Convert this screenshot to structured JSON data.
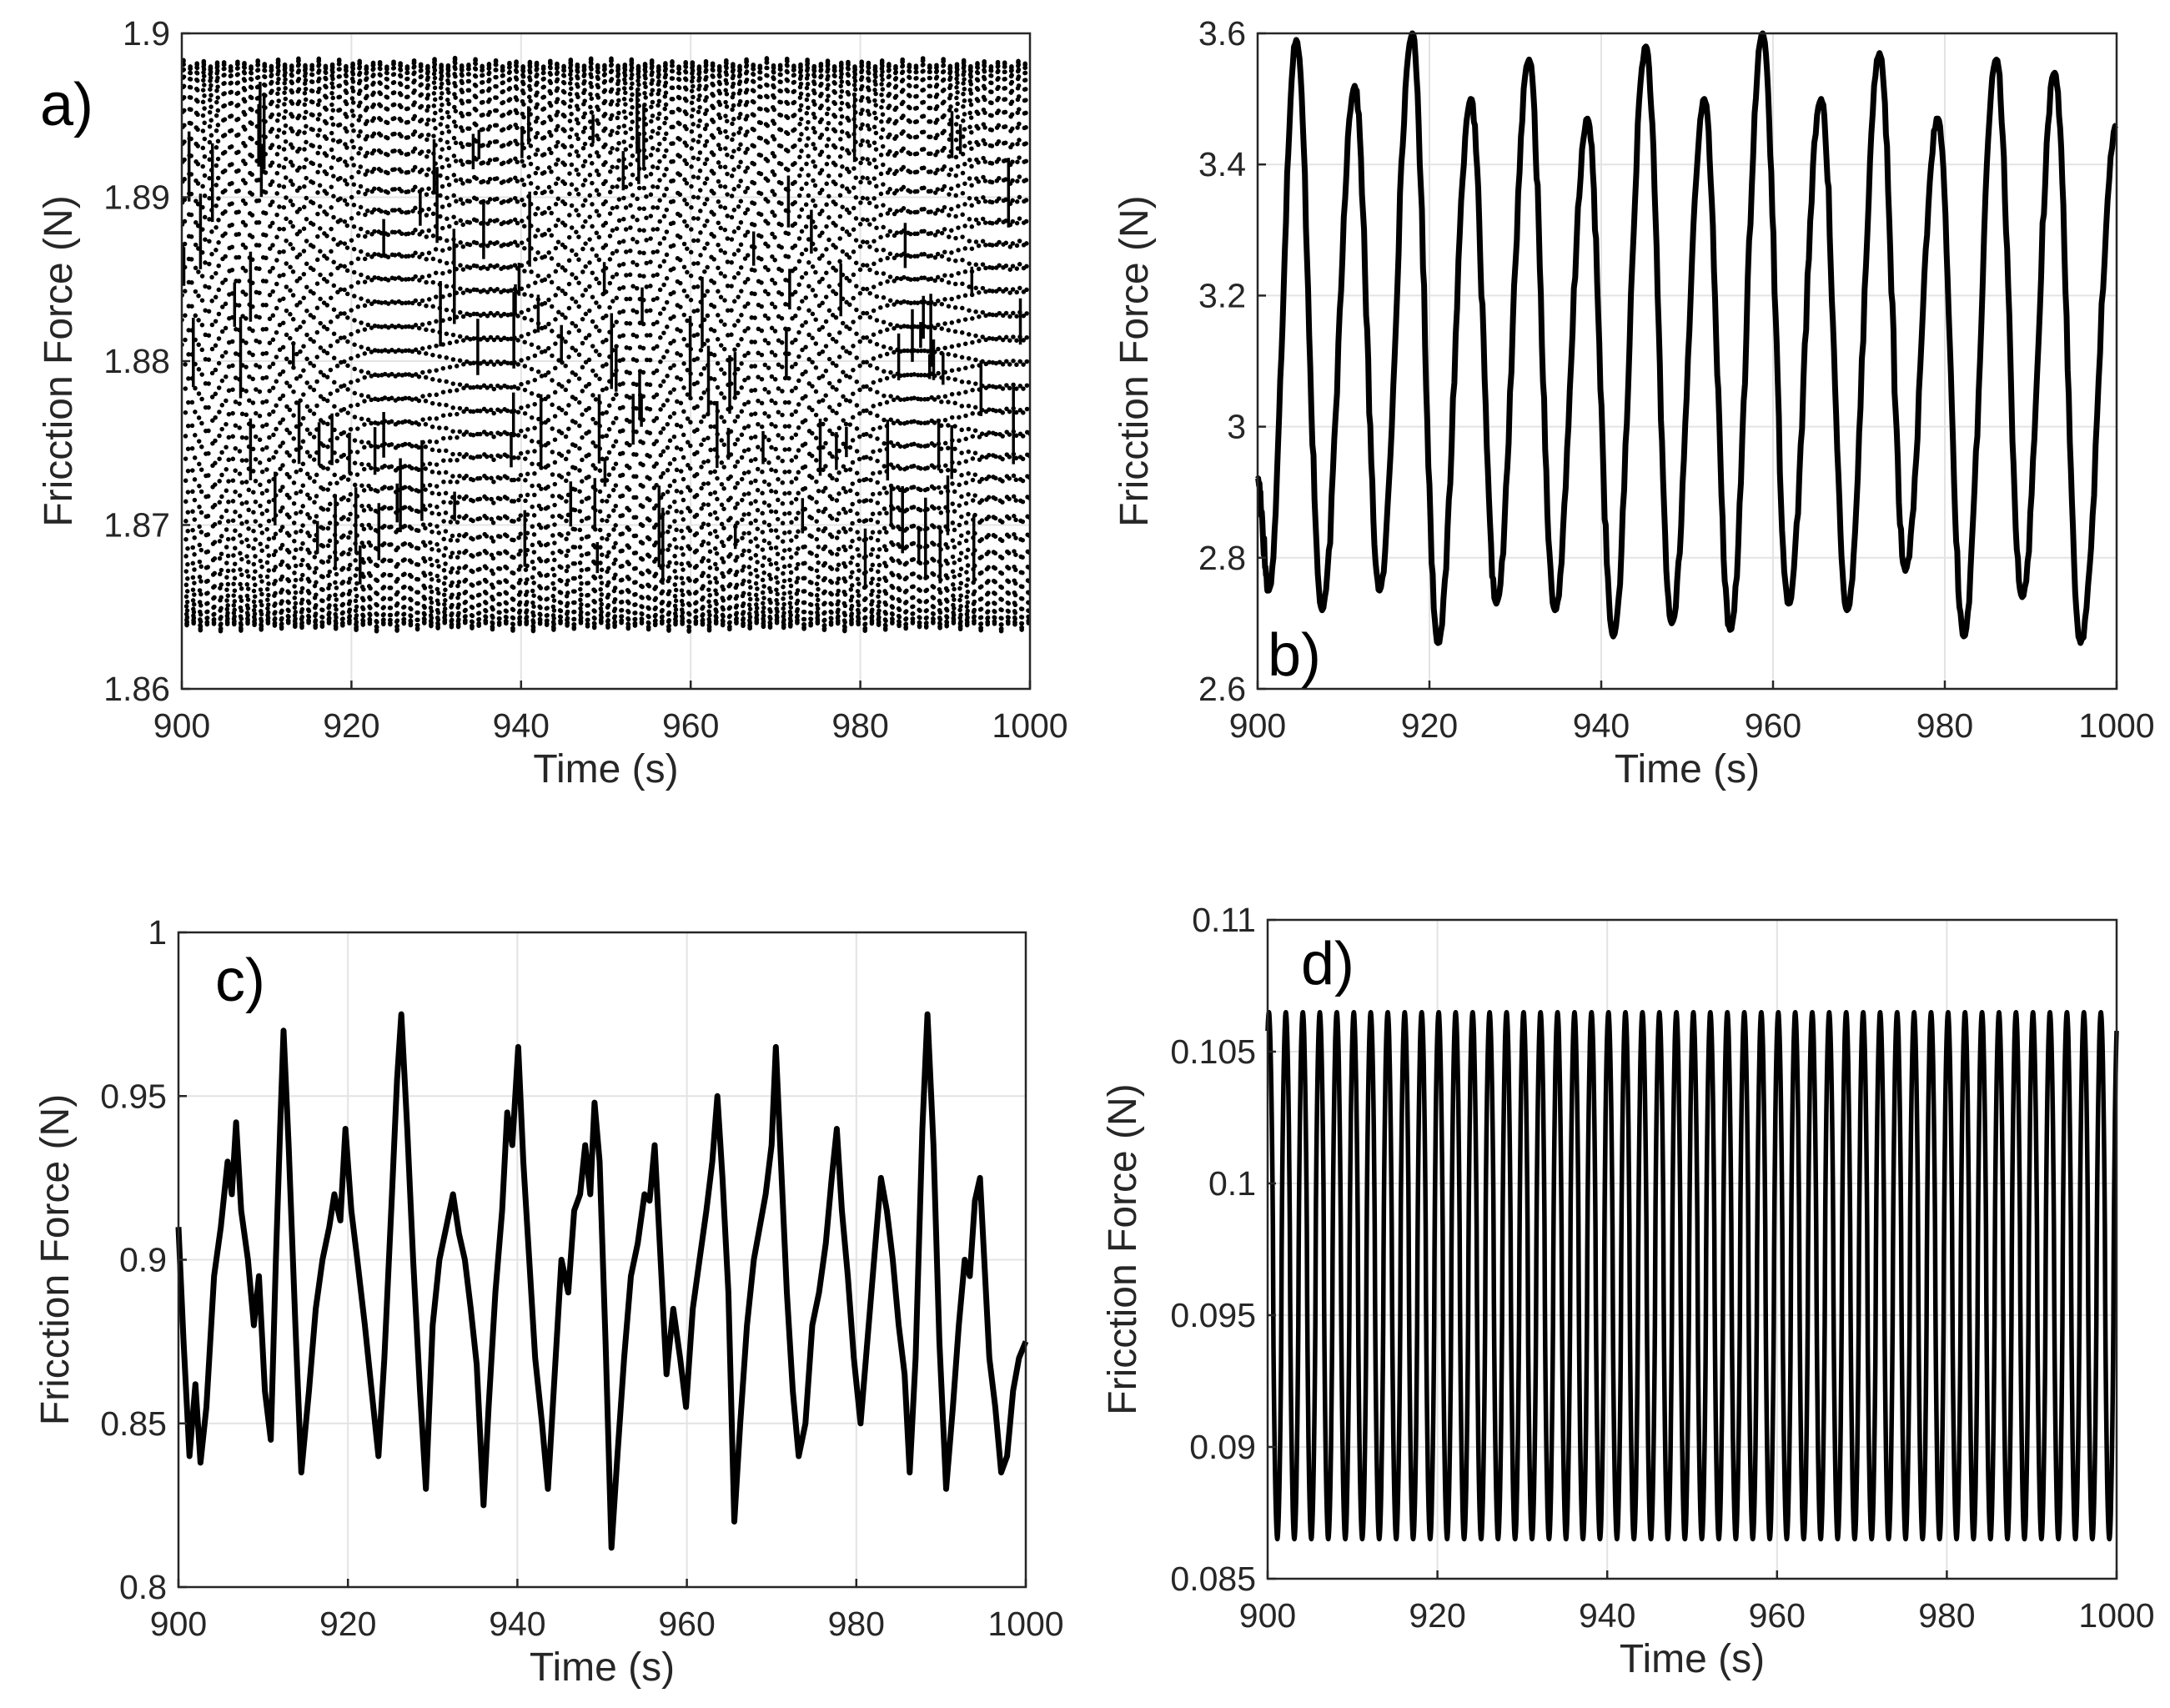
{
  "chart_data": [
    {
      "type": "line",
      "panel_label": "a)",
      "panel_label_position": "top-left",
      "title": "",
      "xlabel": "Time (s)",
      "ylabel": "Fricction Force (N)",
      "xlim": [
        900,
        1000
      ],
      "ylim": [
        1.86,
        1.9
      ],
      "xticks": [
        900,
        920,
        940,
        960,
        980,
        1000
      ],
      "xtick_labels": [
        "900",
        "920",
        "940",
        "960",
        "980",
        "1000"
      ],
      "yticks": [
        1.86,
        1.87,
        1.88,
        1.89,
        1.9
      ],
      "ytick_labels": [
        "1.86",
        "1.87",
        "1.88",
        "1.89",
        "1.9"
      ],
      "grid": true,
      "marker_style": "dots",
      "series": [
        {
          "name": "a",
          "description": "dense dotted oscillation filling the band between ~1.8635 and ~1.8985",
          "x_start": 900,
          "x_end": 1000,
          "period": 0.8,
          "min": 1.8635,
          "max": 1.8985
        }
      ]
    },
    {
      "type": "line",
      "panel_label": "b)",
      "panel_label_position": "bottom-left",
      "title": "",
      "xlabel": "Time (s)",
      "ylabel": "Fricction Force (N)",
      "xlim": [
        900,
        1000
      ],
      "ylim": [
        2.6,
        3.6
      ],
      "xticks": [
        900,
        920,
        940,
        960,
        980,
        1000
      ],
      "xtick_labels": [
        "900",
        "920",
        "940",
        "960",
        "980",
        "1000"
      ],
      "yticks": [
        2.6,
        2.8,
        3.0,
        3.2,
        3.4,
        3.6
      ],
      "ytick_labels": [
        "2.6",
        "2.8",
        "3",
        "3.2",
        "3.4",
        "3.6"
      ],
      "grid": true,
      "series": [
        {
          "name": "b",
          "start_value": 2.92,
          "end_value": 3.46,
          "peaks": [
            {
              "x": 904.5,
              "y": 3.59
            },
            {
              "x": 911.3,
              "y": 3.52
            },
            {
              "x": 918.0,
              "y": 3.6
            },
            {
              "x": 924.8,
              "y": 3.5
            },
            {
              "x": 931.6,
              "y": 3.56
            },
            {
              "x": 938.4,
              "y": 3.47
            },
            {
              "x": 945.2,
              "y": 3.58
            },
            {
              "x": 952.0,
              "y": 3.5
            },
            {
              "x": 958.8,
              "y": 3.6
            },
            {
              "x": 965.6,
              "y": 3.5
            },
            {
              "x": 972.4,
              "y": 3.57
            },
            {
              "x": 979.2,
              "y": 3.47
            },
            {
              "x": 986.0,
              "y": 3.56
            },
            {
              "x": 992.8,
              "y": 3.54
            }
          ],
          "troughs": [
            {
              "x": 901.3,
              "y": 2.75
            },
            {
              "x": 907.5,
              "y": 2.72
            },
            {
              "x": 914.2,
              "y": 2.75
            },
            {
              "x": 921.0,
              "y": 2.67
            },
            {
              "x": 927.8,
              "y": 2.73
            },
            {
              "x": 934.6,
              "y": 2.72
            },
            {
              "x": 941.4,
              "y": 2.68
            },
            {
              "x": 948.2,
              "y": 2.7
            },
            {
              "x": 955.0,
              "y": 2.69
            },
            {
              "x": 961.8,
              "y": 2.73
            },
            {
              "x": 968.6,
              "y": 2.72
            },
            {
              "x": 975.4,
              "y": 2.78
            },
            {
              "x": 982.2,
              "y": 2.68
            },
            {
              "x": 989.0,
              "y": 2.74
            },
            {
              "x": 995.8,
              "y": 2.67
            }
          ]
        }
      ]
    },
    {
      "type": "line",
      "panel_label": "c)",
      "panel_label_position": "top-left",
      "title": "",
      "xlabel": "Time (s)",
      "ylabel": "Fricction Force (N)",
      "xlim": [
        900,
        1000
      ],
      "ylim": [
        0.8,
        1.0
      ],
      "xticks": [
        900,
        920,
        940,
        960,
        980,
        1000
      ],
      "xtick_labels": [
        "900",
        "920",
        "940",
        "960",
        "980",
        "1000"
      ],
      "yticks": [
        0.8,
        0.85,
        0.9,
        0.95,
        1.0
      ],
      "ytick_labels": [
        "0.8",
        "0.85",
        "0.9",
        "0.95",
        "1"
      ],
      "grid": true,
      "series": [
        {
          "name": "c",
          "points": [
            [
              900.0,
              0.91
            ],
            [
              900.6,
              0.875
            ],
            [
              901.3,
              0.84
            ],
            [
              902.0,
              0.862
            ],
            [
              902.6,
              0.838
            ],
            [
              903.3,
              0.855
            ],
            [
              904.2,
              0.895
            ],
            [
              905.0,
              0.91
            ],
            [
              905.8,
              0.93
            ],
            [
              906.3,
              0.92
            ],
            [
              906.8,
              0.942
            ],
            [
              907.4,
              0.915
            ],
            [
              908.2,
              0.9
            ],
            [
              908.9,
              0.88
            ],
            [
              909.5,
              0.895
            ],
            [
              910.2,
              0.86
            ],
            [
              910.9,
              0.845
            ],
            [
              911.5,
              0.9
            ],
            [
              912.0,
              0.94
            ],
            [
              912.4,
              0.97
            ],
            [
              913.0,
              0.935
            ],
            [
              913.8,
              0.88
            ],
            [
              914.5,
              0.835
            ],
            [
              915.4,
              0.86
            ],
            [
              916.2,
              0.885
            ],
            [
              917.0,
              0.9
            ],
            [
              917.8,
              0.91
            ],
            [
              918.4,
              0.92
            ],
            [
              919.1,
              0.912
            ],
            [
              919.7,
              0.94
            ],
            [
              920.4,
              0.915
            ],
            [
              921.1,
              0.9
            ],
            [
              922.0,
              0.88
            ],
            [
              922.8,
              0.86
            ],
            [
              923.6,
              0.84
            ],
            [
              924.3,
              0.87
            ],
            [
              925.2,
              0.92
            ],
            [
              925.8,
              0.955
            ],
            [
              926.3,
              0.975
            ],
            [
              927.0,
              0.94
            ],
            [
              927.7,
              0.9
            ],
            [
              928.5,
              0.86
            ],
            [
              929.2,
              0.83
            ],
            [
              930.0,
              0.88
            ],
            [
              930.8,
              0.9
            ],
            [
              931.6,
              0.91
            ],
            [
              932.4,
              0.92
            ],
            [
              933.1,
              0.908
            ],
            [
              933.8,
              0.9
            ],
            [
              934.5,
              0.885
            ],
            [
              935.2,
              0.868
            ],
            [
              936.0,
              0.825
            ],
            [
              936.6,
              0.855
            ],
            [
              937.4,
              0.89
            ],
            [
              938.2,
              0.915
            ],
            [
              938.8,
              0.945
            ],
            [
              939.4,
              0.935
            ],
            [
              940.1,
              0.965
            ],
            [
              940.7,
              0.93
            ],
            [
              941.4,
              0.9
            ],
            [
              942.1,
              0.87
            ],
            [
              942.9,
              0.85
            ],
            [
              943.6,
              0.83
            ],
            [
              944.4,
              0.865
            ],
            [
              945.2,
              0.9
            ],
            [
              946.0,
              0.89
            ],
            [
              946.7,
              0.915
            ],
            [
              947.4,
              0.92
            ],
            [
              948.0,
              0.935
            ],
            [
              948.6,
              0.92
            ],
            [
              949.1,
              0.948
            ],
            [
              949.7,
              0.93
            ],
            [
              950.4,
              0.875
            ],
            [
              951.1,
              0.812
            ],
            [
              951.8,
              0.84
            ],
            [
              952.6,
              0.87
            ],
            [
              953.4,
              0.895
            ],
            [
              954.2,
              0.905
            ],
            [
              955.0,
              0.92
            ],
            [
              955.6,
              0.918
            ],
            [
              956.2,
              0.935
            ],
            [
              956.8,
              0.905
            ],
            [
              957.6,
              0.865
            ],
            [
              958.4,
              0.885
            ],
            [
              959.2,
              0.87
            ],
            [
              959.9,
              0.855
            ],
            [
              960.7,
              0.885
            ],
            [
              961.5,
              0.9
            ],
            [
              962.3,
              0.915
            ],
            [
              963.0,
              0.93
            ],
            [
              963.6,
              0.95
            ],
            [
              964.2,
              0.925
            ],
            [
              964.9,
              0.89
            ],
            [
              965.6,
              0.82
            ],
            [
              966.3,
              0.85
            ],
            [
              967.1,
              0.88
            ],
            [
              967.9,
              0.9
            ],
            [
              968.6,
              0.91
            ],
            [
              969.3,
              0.92
            ],
            [
              970.0,
              0.935
            ],
            [
              970.5,
              0.965
            ],
            [
              971.1,
              0.93
            ],
            [
              971.8,
              0.89
            ],
            [
              972.5,
              0.86
            ],
            [
              973.2,
              0.84
            ],
            [
              974.0,
              0.85
            ],
            [
              974.8,
              0.88
            ],
            [
              975.6,
              0.89
            ],
            [
              976.4,
              0.905
            ],
            [
              977.1,
              0.925
            ],
            [
              977.7,
              0.94
            ],
            [
              978.3,
              0.915
            ],
            [
              979.0,
              0.895
            ],
            [
              979.7,
              0.87
            ],
            [
              980.5,
              0.85
            ],
            [
              981.3,
              0.875
            ],
            [
              982.1,
              0.9
            ],
            [
              982.9,
              0.925
            ],
            [
              983.6,
              0.915
            ],
            [
              984.3,
              0.9
            ],
            [
              985.0,
              0.88
            ],
            [
              985.7,
              0.865
            ],
            [
              986.3,
              0.835
            ],
            [
              987.0,
              0.87
            ],
            [
              987.8,
              0.94
            ],
            [
              988.4,
              0.975
            ],
            [
              989.1,
              0.935
            ],
            [
              989.8,
              0.875
            ],
            [
              990.6,
              0.83
            ],
            [
              991.4,
              0.855
            ],
            [
              992.1,
              0.88
            ],
            [
              992.8,
              0.9
            ],
            [
              993.4,
              0.895
            ],
            [
              994.0,
              0.918
            ],
            [
              994.6,
              0.925
            ],
            [
              995.1,
              0.9
            ],
            [
              995.7,
              0.87
            ],
            [
              996.4,
              0.855
            ],
            [
              997.1,
              0.835
            ],
            [
              997.8,
              0.84
            ],
            [
              998.5,
              0.86
            ],
            [
              999.2,
              0.87
            ],
            [
              1000.0,
              0.875
            ]
          ]
        }
      ]
    },
    {
      "type": "line",
      "panel_label": "d)",
      "panel_label_position": "top-left",
      "title": "",
      "xlabel": "Time (s)",
      "ylabel": "Fricction Force (N)",
      "xlim": [
        900,
        1000
      ],
      "ylim": [
        0.085,
        0.11
      ],
      "xticks": [
        900,
        920,
        940,
        960,
        980,
        1000
      ],
      "xtick_labels": [
        "900",
        "920",
        "940",
        "960",
        "980",
        "1000"
      ],
      "yticks": [
        0.085,
        0.09,
        0.095,
        0.1,
        0.105,
        0.11
      ],
      "ytick_labels": [
        "0.085",
        "0.09",
        "0.095",
        "0.1",
        "0.105",
        "0.11"
      ],
      "grid": true,
      "series": [
        {
          "name": "d",
          "description": "regular periodic oscillation between ~0.0865 and ~0.1065",
          "x_start": 900,
          "x_end": 1000,
          "cycles": 50,
          "min": 0.0865,
          "max": 0.1065,
          "start_value": 0.1055
        }
      ]
    }
  ]
}
